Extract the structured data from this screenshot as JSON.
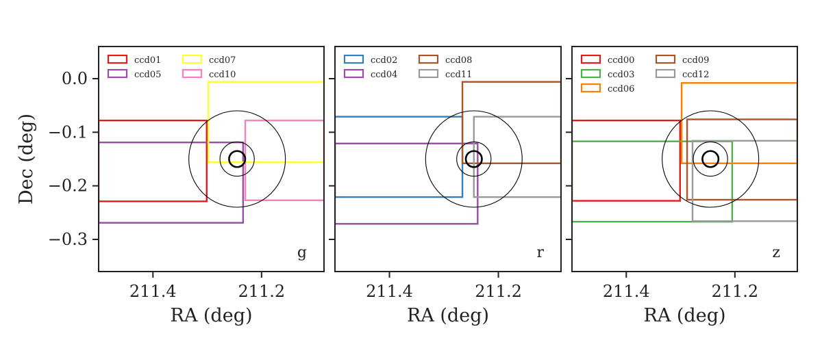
{
  "chart_data": [
    {
      "type": "line",
      "panel": "g",
      "band_label": "g",
      "xlabel": "RA (deg)",
      "ylabel": "Dec (deg)",
      "xlim": [
        211.5,
        211.085
      ],
      "ylim": [
        -0.36,
        0.06
      ],
      "xticks": [
        211.4,
        211.2
      ],
      "xtick_labels": [
        "211.4",
        "211.2"
      ],
      "yticks": [
        0.0,
        -0.1,
        -0.2,
        -0.3
      ],
      "ytick_labels": [
        "0.0",
        "−0.1",
        "−0.2",
        "−0.3"
      ],
      "legend_position": "upper-left",
      "legend_columns": 2,
      "target_center": {
        "ra": 211.245,
        "dec": -0.15
      },
      "target_circle_radii": [
        0.09,
        0.032,
        0.015
      ],
      "series": [
        {
          "name": "ccd01",
          "color": "#e41a1c",
          "ra_range": [
            211.5,
            211.301
          ],
          "dec_range": [
            -0.229,
            -0.078
          ]
        },
        {
          "name": "ccd05",
          "color": "#984ea3",
          "ra_range": [
            211.5,
            211.234
          ],
          "dec_range": [
            -0.269,
            -0.119
          ]
        },
        {
          "name": "ccd07",
          "color": "#ffff33",
          "ra_range": [
            211.298,
            211.085
          ],
          "dec_range": [
            -0.156,
            -0.006
          ]
        },
        {
          "name": "ccd10",
          "color": "#f781bf",
          "ra_range": [
            211.23,
            211.085
          ],
          "dec_range": [
            -0.227,
            -0.078
          ]
        }
      ]
    },
    {
      "type": "line",
      "panel": "r",
      "band_label": "r",
      "xlabel": "RA (deg)",
      "ylabel": "",
      "xlim": [
        211.5,
        211.085
      ],
      "ylim": [
        -0.36,
        0.06
      ],
      "xticks": [
        211.4,
        211.2
      ],
      "xtick_labels": [
        "211.4",
        "211.2"
      ],
      "yticks": [
        0.0,
        -0.1,
        -0.2,
        -0.3
      ],
      "legend_position": "upper-left",
      "legend_columns": 2,
      "target_center": {
        "ra": 211.245,
        "dec": -0.15
      },
      "target_circle_radii": [
        0.09,
        0.032,
        0.015
      ],
      "series": [
        {
          "name": "ccd02",
          "color": "#377eb8",
          "ra_range": [
            211.5,
            211.266
          ],
          "dec_range": [
            -0.221,
            -0.071
          ]
        },
        {
          "name": "ccd04",
          "color": "#984ea3",
          "ra_range": [
            211.5,
            211.238
          ],
          "dec_range": [
            -0.271,
            -0.121
          ]
        },
        {
          "name": "ccd08",
          "color": "#a65628",
          "ra_range": [
            211.266,
            211.085
          ],
          "dec_range": [
            -0.158,
            -0.006
          ]
        },
        {
          "name": "ccd11",
          "color": "#999999",
          "ra_range": [
            211.245,
            211.085
          ],
          "dec_range": [
            -0.221,
            -0.071
          ]
        }
      ]
    },
    {
      "type": "line",
      "panel": "z",
      "band_label": "z",
      "xlabel": "RA (deg)",
      "ylabel": "",
      "xlim": [
        211.5,
        211.085
      ],
      "ylim": [
        -0.36,
        0.06
      ],
      "xticks": [
        211.4,
        211.2
      ],
      "xtick_labels": [
        "211.4",
        "211.2"
      ],
      "yticks": [
        0.0,
        -0.1,
        -0.2,
        -0.3
      ],
      "legend_position": "upper-left",
      "legend_columns": 2,
      "target_center": {
        "ra": 211.245,
        "dec": -0.15
      },
      "target_circle_radii": [
        0.09,
        0.032,
        0.015
      ],
      "series": [
        {
          "name": "ccd00",
          "color": "#e41a1c",
          "ra_range": [
            211.5,
            211.301
          ],
          "dec_range": [
            -0.228,
            -0.078
          ]
        },
        {
          "name": "ccd03",
          "color": "#4daf4a",
          "ra_range": [
            211.5,
            211.205
          ],
          "dec_range": [
            -0.267,
            -0.117
          ]
        },
        {
          "name": "ccd06",
          "color": "#ff7f00",
          "ra_range": [
            211.298,
            211.085
          ],
          "dec_range": [
            -0.158,
            -0.008
          ]
        },
        {
          "name": "ccd09",
          "color": "#a65628",
          "ra_range": [
            211.288,
            211.085
          ],
          "dec_range": [
            -0.226,
            -0.076
          ]
        },
        {
          "name": "ccd12",
          "color": "#999999",
          "ra_range": [
            211.278,
            211.085
          ],
          "dec_range": [
            -0.266,
            -0.116
          ]
        }
      ]
    }
  ]
}
